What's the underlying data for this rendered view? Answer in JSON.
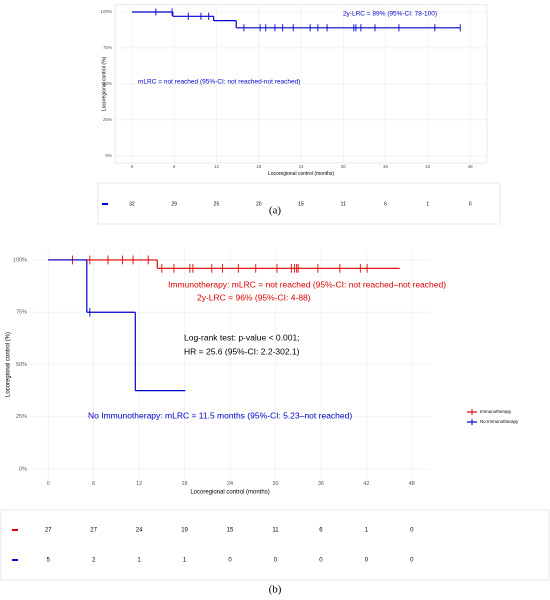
{
  "chart_data": [
    {
      "type": "km",
      "panel_label": "(a)",
      "x_label": "Locoregional control (months)",
      "y_label": "Locoregional control (%)",
      "xlim": [
        -2.4,
        50.4
      ],
      "xticks": [
        0,
        6,
        12,
        18,
        24,
        30,
        36,
        42,
        48
      ],
      "ylim": [
        -5,
        105
      ],
      "yticks": [
        {
          "value": 0,
          "label": "0%"
        },
        {
          "value": 25,
          "label": "25%"
        },
        {
          "value": 50,
          "label": "50%"
        },
        {
          "value": 75,
          "label": "75%"
        },
        {
          "value": 100,
          "label": "100%"
        }
      ],
      "grid": true,
      "series": [
        {
          "color": "#0000cc",
          "x": [
            0,
            5.8,
            11.6,
            14.8,
            46.6
          ],
          "values": [
            100,
            97,
            94,
            89,
            89
          ],
          "censor_x": [
            3.4,
            5.7,
            8,
            9.8,
            10.9,
            15.9,
            18.2,
            19,
            20.3,
            21.4,
            22.9,
            25.3,
            26.4,
            27.7,
            31.5,
            31.8,
            32.5,
            34.5,
            37.9,
            43,
            46.6
          ]
        }
      ],
      "annotations": [
        {
          "text": "2y-LRC = 89% (95%-CI: 78-100)",
          "color": "#0000cc"
        },
        {
          "text": "mLRC = not reached (95%-CI: not reached-not reached)",
          "color": "#0000cc"
        }
      ],
      "risk_table": [
        [
          32,
          29,
          25,
          20,
          15,
          11,
          6,
          1,
          0
        ]
      ]
    },
    {
      "type": "km",
      "panel_label": "(b)",
      "x_label": "Locoregional control (months)",
      "y_label": "Locoregional control (%)",
      "xlim": [
        -2.4,
        50.4
      ],
      "xticks": [
        0,
        6,
        12,
        18,
        24,
        30,
        36,
        42,
        48
      ],
      "ylim": [
        -5,
        105
      ],
      "yticks": [
        {
          "value": 0,
          "label": "0%"
        },
        {
          "value": 25,
          "label": "25%"
        },
        {
          "value": 50,
          "label": "50%"
        },
        {
          "value": 75,
          "label": "75%"
        },
        {
          "value": 100,
          "label": "100%"
        }
      ],
      "grid": true,
      "series": [
        {
          "name": "Immunotherapy",
          "color": "#dd0000",
          "x": [
            0,
            14.4,
            46.4
          ],
          "values": [
            100,
            96,
            96
          ],
          "censor_x": [
            3.2,
            5.5,
            7.9,
            9.8,
            11.2,
            13.2,
            15,
            16.6,
            18.7,
            19.1,
            21.6,
            23,
            25.1,
            27.4,
            30.2,
            32.1,
            32.5,
            32.8,
            33,
            35.6,
            38.5,
            41.2,
            42.1
          ]
        },
        {
          "name": "No Immunotherapy",
          "color": "#0000cc",
          "x": [
            0,
            5.1,
            11.5,
            18.1
          ],
          "values": [
            100,
            75,
            37.5,
            37.5
          ],
          "censor_x": [
            5.5
          ]
        }
      ],
      "annotations": [
        {
          "text": "Immunotherapy:  mLRC = not reached (95%-CI: not reached–not reached)",
          "color": "#dd0000"
        },
        {
          "text": "2y-LRC = 96% (95%-CI: 4-88)",
          "color": "#dd0000"
        },
        {
          "text": "Log-rank test: p-value < 0.001;",
          "color": "#000000"
        },
        {
          "text": "HR = 25.6 (95%-CI: 2.2-302.1)",
          "color": "#000000"
        },
        {
          "text": "No Immunotherapy:  mLRC = 11.5 months (95%-CI: 5.23–not reached)",
          "color": "#0000cc"
        }
      ],
      "risk_table": [
        [
          27,
          27,
          24,
          19,
          15,
          11,
          6,
          1,
          0
        ],
        [
          5,
          2,
          1,
          1,
          0,
          0,
          0,
          0,
          0
        ]
      ]
    }
  ]
}
